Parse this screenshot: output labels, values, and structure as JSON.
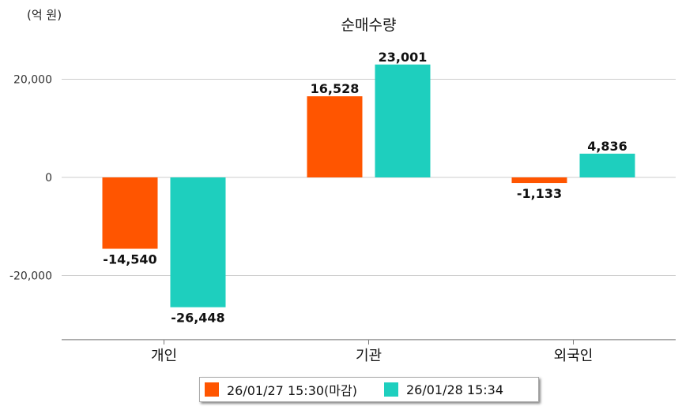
{
  "unit_label": "(억 원)",
  "chart_data": {
    "type": "bar",
    "title": "순매수량",
    "categories": [
      "개인",
      "기관",
      "외국인"
    ],
    "series": [
      {
        "name": "26/01/27 15:30(마감)",
        "values": [
          -14540,
          16528,
          -1133
        ],
        "labels": [
          "-14,540",
          "16,528",
          "-1,133"
        ],
        "color": "#ff5500"
      },
      {
        "name": "26/01/28 15:34",
        "values": [
          -26448,
          23001,
          4836
        ],
        "labels": [
          "-26,448",
          "23,001",
          "4,836"
        ],
        "color": "#1ecfbe"
      }
    ],
    "yticks": [
      20000,
      0,
      -20000
    ],
    "ytick_labels": [
      "20,000",
      "0",
      "-20,000"
    ],
    "ylim": [
      -33000,
      25000
    ],
    "grid": true,
    "legend_position": "bottom"
  }
}
